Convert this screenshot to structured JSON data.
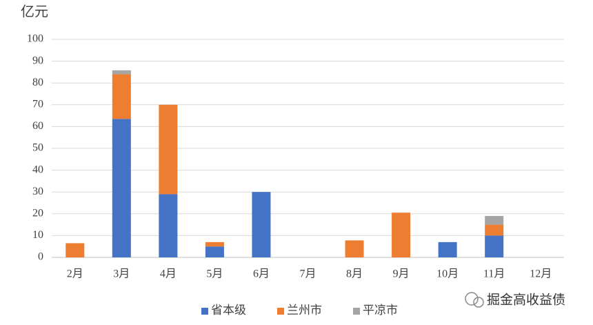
{
  "chart_data": {
    "type": "stacked_bar",
    "y_axis_label": "亿元",
    "categories": [
      "2月",
      "3月",
      "4月",
      "5月",
      "6月",
      "7月",
      "8月",
      "9月",
      "10月",
      "11月",
      "12月"
    ],
    "series": [
      {
        "name": "省本级",
        "color": "#4472c4",
        "values": [
          0,
          63.5,
          29,
          5,
          30,
          0,
          0,
          0,
          7,
          10,
          0
        ]
      },
      {
        "name": "兰州市",
        "color": "#ed7d31",
        "values": [
          6.5,
          20.5,
          41,
          2,
          0,
          0,
          7.8,
          20.5,
          0,
          5,
          0
        ]
      },
      {
        "name": "平凉市",
        "color": "#a5a5a5",
        "values": [
          0,
          1.8,
          0,
          0,
          0,
          0,
          0,
          0,
          0,
          4,
          0
        ]
      }
    ],
    "ylim": [
      0,
      100
    ],
    "yticks": [
      0,
      10,
      20,
      30,
      40,
      50,
      60,
      70,
      80,
      90,
      100
    ],
    "grid": true,
    "legend": "bottom",
    "watermark": "掘金高收益债"
  }
}
